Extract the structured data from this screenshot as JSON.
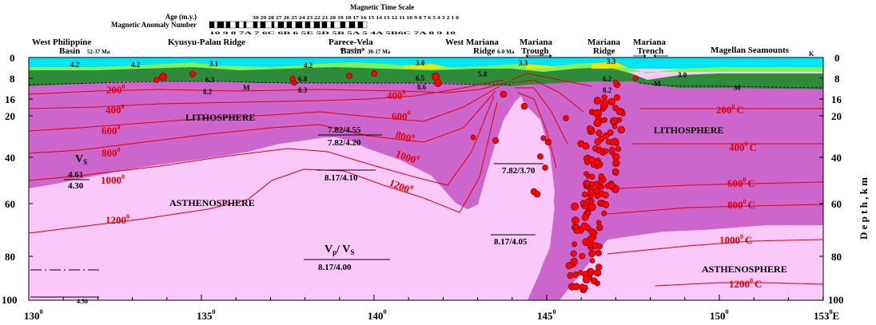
{
  "colors": {
    "water": "#00e5f5",
    "crust_green": "#2e8b3a",
    "lithosphere": "#cc66cc",
    "asthenosphere": "#fac8fa",
    "isotherm": "#e00000",
    "quake": "#ff0000"
  },
  "header": {
    "time_scale_title": "Magnetic Time Scale",
    "age_label": "Age (m.y.)",
    "anomaly_label": "Magnetic Anomaly Number",
    "ages": "30 29 28 27 26 25 24 23 22 21 20 19 18 17 16 15 14 13 12 11 10 9 8 7 6 5 4 3 2 1 0",
    "anomalies": "10 9 8 7A 7 6C 6B 6 5E 5D 5B 5A 5 4A 5B6C 7A 8 9 10"
  },
  "regions": [
    {
      "name": "West Philippine",
      "sub": "Basin",
      "age": "52-37 Ma"
    },
    {
      "name": "Kyusyu-Palau Ridge",
      "sub": "",
      "age": ""
    },
    {
      "name": "Parece-Vela",
      "sub": "Basin",
      "age": "30-17 Ma"
    },
    {
      "name": "West Mariana",
      "sub": "Ridge",
      "age": ""
    },
    {
      "name": "Mariana",
      "sub": "Trough",
      "age": "6-0 Ma"
    },
    {
      "name": "Mariana",
      "sub": "Ridge",
      "age": ""
    },
    {
      "name": "Mariana",
      "sub": "Trench",
      "age": ""
    },
    {
      "name": "Magellan Seamounts",
      "sub": "",
      "age": "K"
    }
  ],
  "axes": {
    "depth_ticks": [
      "0",
      "8",
      "16",
      "20",
      "40",
      "60",
      "80",
      "100"
    ],
    "depth_label": "D e p t h ,  k m",
    "lon_ticks": [
      "130",
      "135",
      "140",
      "145",
      "150",
      "153"
    ],
    "lon_suffix": "E",
    "degree": "0"
  },
  "layers": {
    "lithosphere_left": "LITHOSPHERE",
    "lithosphere_right": "LITHOSPHERE",
    "asthenosphere_left": "ASTHENOSPHERE",
    "asthenosphere_right": "ASTHENOSPHERE"
  },
  "crust_values": [
    "4.2",
    "4.2",
    "3.1",
    "6.3",
    "8.2",
    "M",
    "4.2",
    "6.8",
    "8.3",
    "3.0",
    "6.5",
    "8.6",
    "5.0",
    "3.3",
    "3.3",
    "6.2",
    "8.2",
    "M",
    "3.0",
    "M"
  ],
  "velocities": {
    "vs_symbol": "V",
    "vs_sub": "S",
    "vs_left_top": "4.61",
    "vs_left_bot": "4.30",
    "pv_a": "7.82/4.55",
    "pv_b": "7.82/4.20",
    "pv_c": "8.17/4.10",
    "pv_d": "7.82/3.70",
    "pv_e": "8.17/4.05",
    "vpvs_p": "V",
    "vpvs_psub": "p",
    "vpvs_s": "/ V",
    "vpvs_ssub": "S",
    "pv_f": "8.17/4.00",
    "vs_bottom": "4.50"
  },
  "isotherms_left": [
    "200",
    "400",
    "600",
    "800",
    "1000",
    "1200"
  ],
  "isotherms_mid": [
    "400",
    "600",
    "800",
    "1000",
    "1200"
  ],
  "isotherms_right": [
    "200",
    "400",
    "600",
    "800",
    "1000",
    "1200"
  ],
  "isotherm_unit": "C"
}
